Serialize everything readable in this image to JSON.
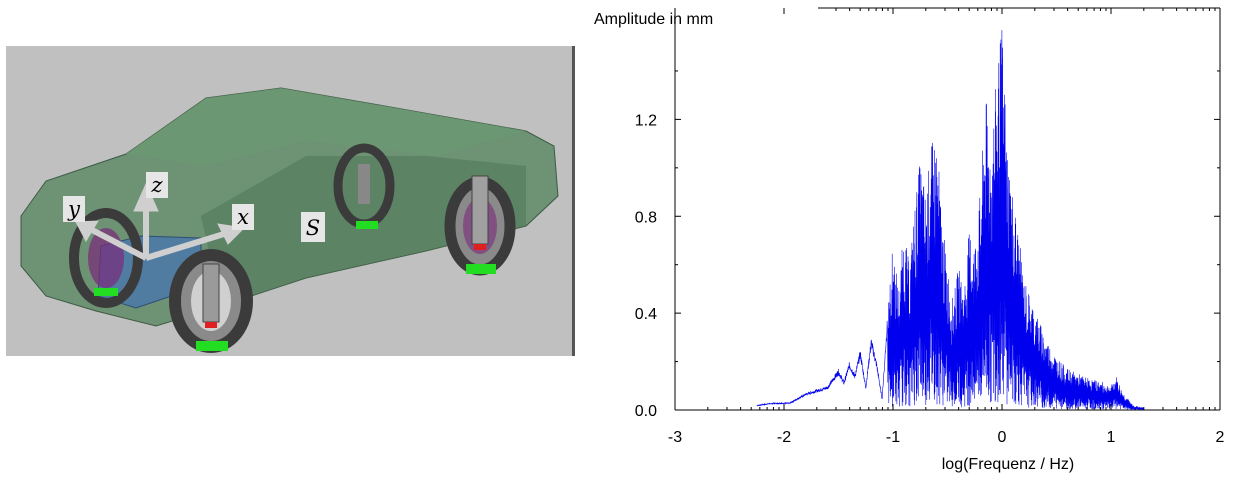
{
  "scene": {
    "labels": {
      "z": "z",
      "y": "y",
      "x": "x",
      "s": "S"
    },
    "colors": {
      "background": "#c0c0c0",
      "body": "#5e8a66",
      "tire": "#4a4a4a",
      "pad": "#22dd22",
      "box": "#4a78a8"
    }
  },
  "chart_data": {
    "type": "line",
    "ylabel": "Amplitude in mm",
    "xlabel": "log(Frequenz / Hz)",
    "xlim": [
      -3,
      2
    ],
    "ylim": [
      0,
      1.66
    ],
    "x_ticks": [
      "-3",
      "-2",
      "-1",
      "0",
      "1",
      "2"
    ],
    "y_ticks": [
      "0.0",
      "0.4",
      "0.8",
      "1.2"
    ],
    "grid": false,
    "legend": "none",
    "series": [
      {
        "color": "#0000ee",
        "x": [
          -2.25,
          -2.1,
          -1.95,
          -1.8,
          -1.6,
          -1.5,
          -1.45,
          -1.4,
          -1.35,
          -1.3,
          -1.25,
          -1.2,
          -1.15,
          -1.1,
          -1.05,
          -1.0,
          -0.95,
          -0.9,
          -0.85,
          -0.8,
          -0.75,
          -0.7,
          -0.65,
          -0.6,
          -0.55,
          -0.5,
          -0.45,
          -0.4,
          -0.35,
          -0.3,
          -0.25,
          -0.2,
          -0.15,
          -0.1,
          -0.05,
          0.0,
          0.05,
          0.1,
          0.15,
          0.2,
          0.3,
          0.4,
          0.5,
          0.6,
          0.7,
          0.8,
          0.9,
          1.0,
          1.05,
          1.1,
          1.15,
          1.2,
          1.3
        ],
        "y": [
          0.02,
          0.03,
          0.03,
          0.07,
          0.1,
          0.17,
          0.12,
          0.2,
          0.15,
          0.25,
          0.1,
          0.3,
          0.2,
          0.05,
          0.4,
          0.7,
          0.5,
          0.75,
          0.6,
          0.85,
          1.05,
          0.9,
          1.1,
          1.15,
          0.8,
          0.6,
          0.45,
          0.6,
          0.5,
          0.75,
          0.7,
          0.9,
          1.3,
          1.1,
          1.4,
          1.6,
          1.1,
          0.9,
          0.75,
          0.55,
          0.42,
          0.3,
          0.22,
          0.17,
          0.15,
          0.13,
          0.12,
          0.1,
          0.14,
          0.08,
          0.05,
          0.02,
          0.01
        ]
      }
    ]
  }
}
